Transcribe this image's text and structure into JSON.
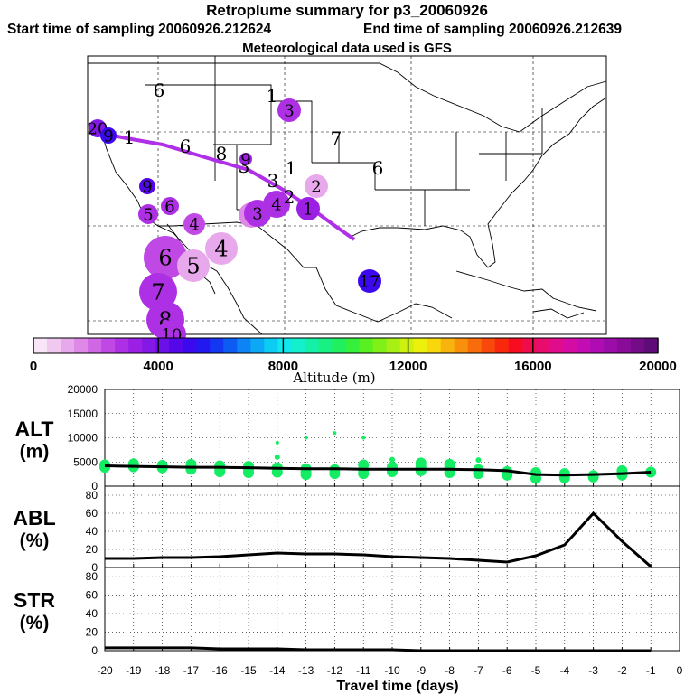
{
  "header": {
    "title": "Retroplume summary for p3_20060926",
    "start_label": "Start time of sampling 20060926.212624",
    "end_label": "End time of sampling 20060926.212639",
    "met_label": "Meteorological data used is GFS"
  },
  "colorbar": {
    "tick_labels": [
      "0",
      "4000",
      "8000",
      "12000",
      "16000",
      "20000"
    ],
    "axis_label": "Altitude (m)",
    "colors": [
      "#f8e6f8",
      "#f0c8f0",
      "#e8a8ec",
      "#de88e8",
      "#d068e6",
      "#c048e4",
      "#ae30e4",
      "#9c20e4",
      "#8418e6",
      "#6c10e8",
      "#5408ea",
      "#3c08ee",
      "#2418f0",
      "#1438f2",
      "#0c5cf4",
      "#0c84f6",
      "#0ca8f6",
      "#0cccf4",
      "#10e8ec",
      "#14f0cc",
      "#14f0a8",
      "#18f084",
      "#20f060",
      "#34f03c",
      "#58f020",
      "#80f018",
      "#a8f014",
      "#ccf010",
      "#ecf00c",
      "#f8d80c",
      "#f8b40c",
      "#f8900c",
      "#f86c0c",
      "#f8480c",
      "#f8280c",
      "#f80c20",
      "#f00c48",
      "#e80c6c",
      "#e00c8c",
      "#d40ca4",
      "#c40cb4",
      "#b00cb4",
      "#9c0ca8",
      "#880c98",
      "#740c88",
      "#600c78"
    ]
  },
  "map": {
    "labels": [
      {
        "text": "20",
        "color": "#8418e6"
      },
      {
        "text": "9",
        "color": "#3c08ee"
      },
      {
        "text": "1",
        "color": "#de88e8"
      },
      {
        "text": "6",
        "color": "#9c20e4"
      },
      {
        "text": "8",
        "color": "#9c20e4"
      },
      {
        "text": "3",
        "color": "#ae30e4"
      },
      {
        "text": "7",
        "color": "#d068e6"
      },
      {
        "text": "6",
        "color": "#de88e8"
      },
      {
        "text": "9",
        "color": "#9c20e4"
      },
      {
        "text": "9",
        "color": "#5408ea"
      },
      {
        "text": "5",
        "color": "#ae30e4"
      },
      {
        "text": "1",
        "color": "#5408ea"
      },
      {
        "text": "6",
        "color": "#ae30e4"
      },
      {
        "text": "4",
        "color": "#c048e4"
      },
      {
        "text": "5",
        "color": "#de88e8"
      },
      {
        "text": "2",
        "color": "#e8a8ec"
      },
      {
        "text": "3",
        "color": "#ae30e4"
      },
      {
        "text": "1",
        "color": "#9c20e4"
      },
      {
        "text": "4",
        "color": "#e8a8ec"
      },
      {
        "text": "6",
        "color": "#c048e4"
      },
      {
        "text": "5",
        "color": "#e8a8ec"
      },
      {
        "text": "7",
        "color": "#ae30e4"
      },
      {
        "text": "8",
        "color": "#ae30e4"
      },
      {
        "text": "10",
        "color": "#ae30e4"
      },
      {
        "text": "17",
        "color": "#3c08ee"
      },
      {
        "text": "4",
        "color": "#ae30e4"
      },
      {
        "text": "3",
        "color": "#ae30e4"
      },
      {
        "text": "2",
        "color": "#ae30e4"
      },
      {
        "text": "6",
        "color": "#ae30e4"
      },
      {
        "text": "1",
        "color": "#ae30e4"
      },
      {
        "text": "3",
        "color": "#ae30e4"
      }
    ]
  },
  "chart_data": [
    {
      "type": "scatter",
      "name": "ALT",
      "ylabel_line1": "ALT",
      "ylabel_line2": "(m)",
      "ylim": [
        0,
        20000
      ],
      "yticks": [
        0,
        5000,
        10000,
        15000,
        20000
      ],
      "mean_line": {
        "x": [
          -20,
          -19,
          -18,
          -17,
          -16,
          -15,
          -14,
          -13,
          -12,
          -11,
          -10,
          -9,
          -8,
          -7,
          -6,
          -5,
          -4,
          -3,
          -2,
          -1
        ],
        "y": [
          4200,
          4100,
          4000,
          3900,
          3900,
          3800,
          3700,
          3600,
          3600,
          3500,
          3500,
          3500,
          3500,
          3400,
          3200,
          2400,
          2300,
          2400,
          2600,
          2900
        ]
      },
      "points": {
        "x": [
          -20,
          -20,
          -19,
          -19,
          -18,
          -18,
          -17,
          -17,
          -17,
          -16,
          -16,
          -16,
          -15,
          -15,
          -15,
          -14,
          -14,
          -14,
          -14,
          -13,
          -13,
          -13,
          -13,
          -12,
          -12,
          -12,
          -11,
          -11,
          -11,
          -11,
          -10,
          -10,
          -10,
          -9,
          -9,
          -9,
          -8,
          -8,
          -8,
          -7,
          -7,
          -7,
          -6,
          -6,
          -5,
          -5,
          -4,
          -4,
          -3,
          -3,
          -2,
          -2,
          -1
        ],
        "y": [
          4400,
          3900,
          4600,
          4000,
          4300,
          3800,
          4500,
          4000,
          3500,
          4200,
          3500,
          3000,
          4100,
          3500,
          2800,
          9000,
          6000,
          3800,
          2900,
          10000,
          3600,
          2900,
          2400,
          11000,
          3400,
          2600,
          10000,
          4400,
          3400,
          2600,
          5500,
          4000,
          3000,
          4800,
          4000,
          3200,
          4500,
          3800,
          2800,
          5400,
          3400,
          2600,
          3000,
          2300,
          2800,
          1600,
          2600,
          1700,
          2200,
          1900,
          3200,
          2300,
          2900
        ]
      },
      "point_color": "#14ec64"
    },
    {
      "type": "line",
      "name": "ABL",
      "ylabel_line1": "ABL",
      "ylabel_line2": "(%)",
      "ylim": [
        0,
        90
      ],
      "yticks": [
        0,
        20,
        40,
        60,
        80
      ],
      "x": [
        -20,
        -19,
        -18,
        -17,
        -16,
        -15,
        -14,
        -13,
        -12,
        -11,
        -10,
        -9,
        -8,
        -7,
        -6,
        -5,
        -4,
        -3,
        -2,
        -1
      ],
      "y": [
        10,
        10,
        11,
        11,
        12,
        14,
        16,
        15,
        15,
        14,
        12,
        11,
        10,
        8,
        6,
        13,
        25,
        60,
        29,
        1
      ]
    },
    {
      "type": "line",
      "name": "STR",
      "ylabel_line1": "STR",
      "ylabel_line2": "(%)",
      "ylim": [
        0,
        90
      ],
      "yticks": [
        0,
        20,
        40,
        60,
        80
      ],
      "x": [
        -20,
        -19,
        -18,
        -17,
        -16,
        -15,
        -14,
        -13,
        -12,
        -11,
        -10,
        -9,
        -8,
        -7,
        -6,
        -5,
        -4,
        -3,
        -2,
        -1
      ],
      "y": [
        3,
        3,
        3,
        3,
        2,
        2,
        2,
        1,
        1,
        1,
        1,
        0,
        0,
        0,
        0,
        0,
        0,
        0,
        0,
        0
      ]
    }
  ],
  "xaxis": {
    "tick_labels": [
      "-20",
      "-19",
      "-18",
      "-17",
      "-16",
      "-15",
      "-14",
      "-13",
      "-12",
      "-11",
      "-10",
      "-9",
      "-8",
      "-7",
      "-6",
      "-5",
      "-4",
      "-3",
      "-2",
      "-1",
      "0"
    ],
    "label": "Travel time (days)"
  }
}
